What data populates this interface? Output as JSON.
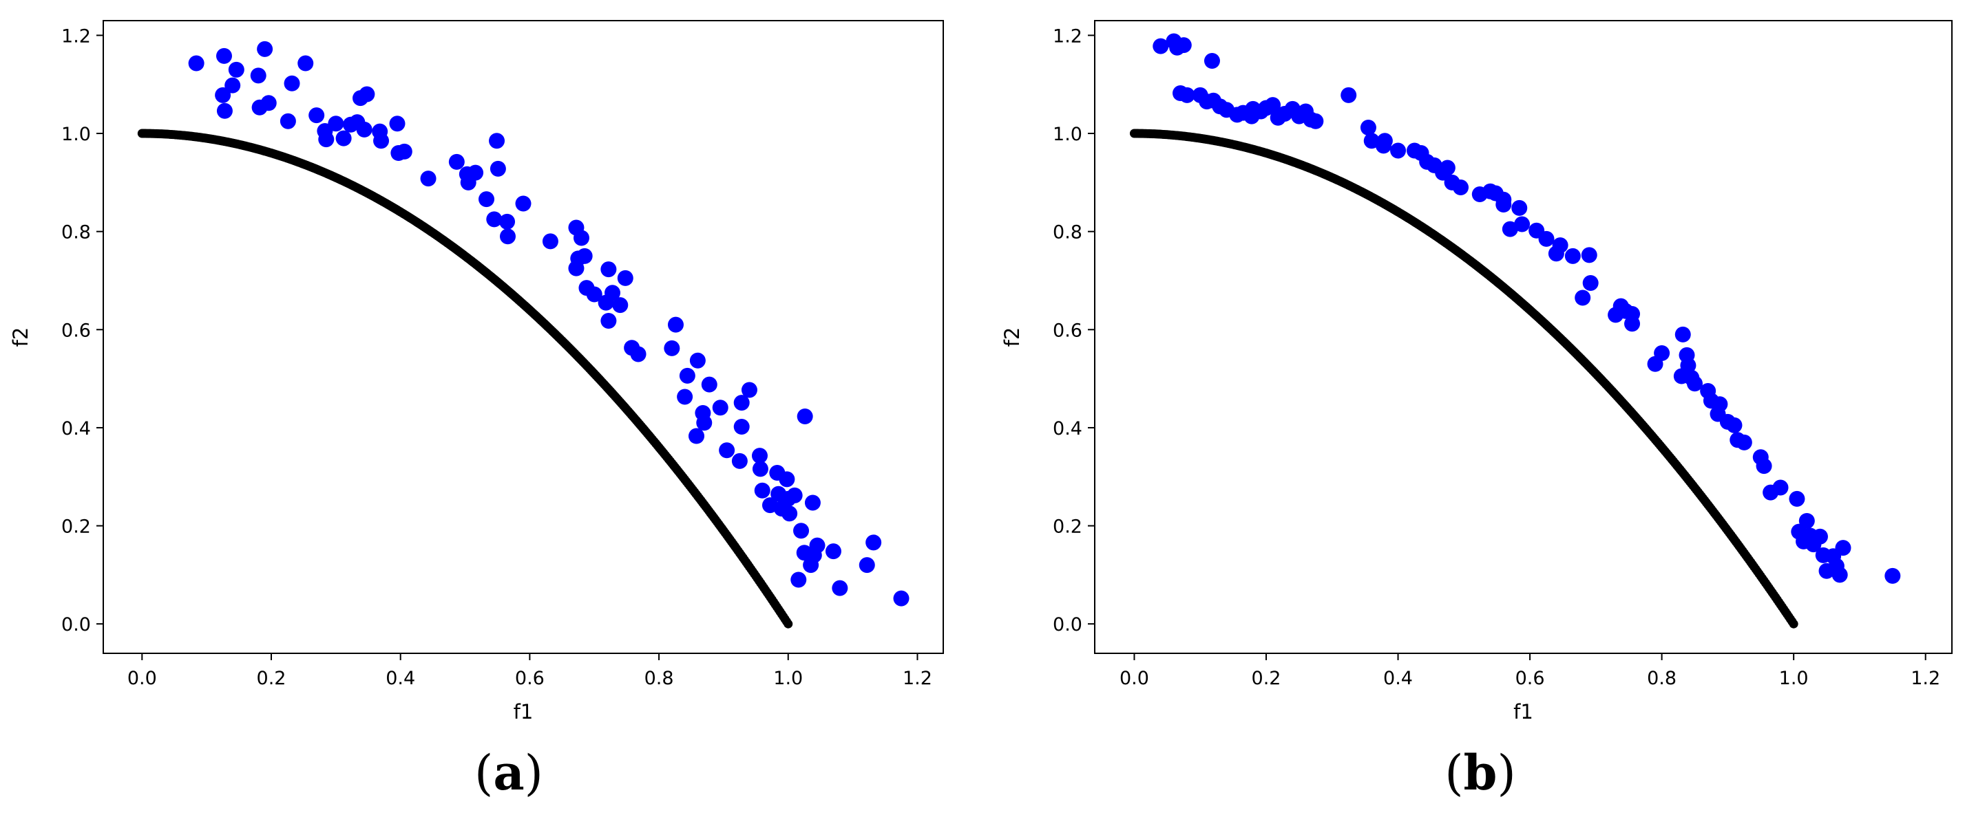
{
  "colors": {
    "front": "#000000",
    "points": "#0000ff",
    "axis": "#000000"
  },
  "chart_data": [
    {
      "type": "scatter",
      "panel_label": "a",
      "xlabel": "f1",
      "ylabel": "f2",
      "xlim": [
        -0.06,
        1.24
      ],
      "ylim": [
        -0.06,
        1.23
      ],
      "xticks": [
        "0.0",
        "0.2",
        "0.4",
        "0.6",
        "0.8",
        "1.0",
        "1.2"
      ],
      "yticks": [
        "0.0",
        "0.2",
        "0.4",
        "0.6",
        "0.8",
        "1.0",
        "1.2"
      ],
      "grid": false,
      "series": [
        {
          "kind": "curve",
          "color": "#000000",
          "function": "f2 = 1 - f1^2",
          "x_range": [
            0,
            1
          ]
        },
        {
          "kind": "points",
          "color": "#0000ff",
          "points": [
            [
              0.084,
              1.143
            ],
            [
              0.127,
              1.158
            ],
            [
              0.125,
              1.078
            ],
            [
              0.128,
              1.046
            ],
            [
              0.14,
              1.098
            ],
            [
              0.146,
              1.13
            ],
            [
              0.19,
              1.172
            ],
            [
              0.18,
              1.118
            ],
            [
              0.196,
              1.062
            ],
            [
              0.182,
              1.053
            ],
            [
              0.226,
              1.025
            ],
            [
              0.232,
              1.102
            ],
            [
              0.253,
              1.143
            ],
            [
              0.27,
              1.037
            ],
            [
              0.283,
              1.005
            ],
            [
              0.285,
              0.988
            ],
            [
              0.3,
              1.02
            ],
            [
              0.312,
              0.99
            ],
            [
              0.323,
              1.018
            ],
            [
              0.333,
              1.023
            ],
            [
              0.338,
              1.072
            ],
            [
              0.348,
              1.08
            ],
            [
              0.344,
              1.008
            ],
            [
              0.368,
              1.004
            ],
            [
              0.37,
              0.985
            ],
            [
              0.395,
              1.02
            ],
            [
              0.397,
              0.96
            ],
            [
              0.406,
              0.963
            ],
            [
              0.443,
              0.908
            ],
            [
              0.487,
              0.942
            ],
            [
              0.503,
              0.917
            ],
            [
              0.505,
              0.9
            ],
            [
              0.516,
              0.92
            ],
            [
              0.533,
              0.866
            ],
            [
              0.545,
              0.825
            ],
            [
              0.549,
              0.985
            ],
            [
              0.551,
              0.928
            ],
            [
              0.565,
              0.82
            ],
            [
              0.566,
              0.79
            ],
            [
              0.59,
              0.857
            ],
            [
              0.632,
              0.78
            ],
            [
              0.672,
              0.808
            ],
            [
              0.675,
              0.745
            ],
            [
              0.672,
              0.725
            ],
            [
              0.68,
              0.787
            ],
            [
              0.685,
              0.75
            ],
            [
              0.688,
              0.685
            ],
            [
              0.7,
              0.672
            ],
            [
              0.718,
              0.655
            ],
            [
              0.722,
              0.723
            ],
            [
              0.722,
              0.618
            ],
            [
              0.728,
              0.675
            ],
            [
              0.74,
              0.65
            ],
            [
              0.748,
              0.705
            ],
            [
              0.758,
              0.563
            ],
            [
              0.768,
              0.55
            ],
            [
              0.82,
              0.562
            ],
            [
              0.826,
              0.61
            ],
            [
              0.84,
              0.463
            ],
            [
              0.844,
              0.506
            ],
            [
              0.86,
              0.537
            ],
            [
              0.858,
              0.383
            ],
            [
              0.87,
              0.41
            ],
            [
              0.868,
              0.43
            ],
            [
              0.878,
              0.488
            ],
            [
              0.895,
              0.441
            ],
            [
              0.905,
              0.354
            ],
            [
              0.925,
              0.332
            ],
            [
              0.928,
              0.451
            ],
            [
              0.928,
              0.402
            ],
            [
              0.94,
              0.477
            ],
            [
              0.956,
              0.343
            ],
            [
              0.957,
              0.316
            ],
            [
              0.96,
              0.272
            ],
            [
              0.972,
              0.242
            ],
            [
              0.983,
              0.308
            ],
            [
              0.985,
              0.265
            ],
            [
              0.99,
              0.235
            ],
            [
              0.998,
              0.295
            ],
            [
              1.0,
              0.255
            ],
            [
              1.002,
              0.225
            ],
            [
              1.01,
              0.262
            ],
            [
              1.016,
              0.09
            ],
            [
              1.02,
              0.19
            ],
            [
              1.025,
              0.145
            ],
            [
              1.026,
              0.423
            ],
            [
              1.035,
              0.12
            ],
            [
              1.038,
              0.247
            ],
            [
              1.04,
              0.14
            ],
            [
              1.045,
              0.16
            ],
            [
              1.07,
              0.148
            ],
            [
              1.08,
              0.073
            ],
            [
              1.122,
              0.12
            ],
            [
              1.132,
              0.166
            ],
            [
              1.175,
              0.052
            ]
          ]
        }
      ]
    },
    {
      "type": "scatter",
      "panel_label": "b",
      "xlabel": "f1",
      "ylabel": "f2",
      "xlim": [
        -0.06,
        1.24
      ],
      "ylim": [
        -0.06,
        1.23
      ],
      "xticks": [
        "0.0",
        "0.2",
        "0.4",
        "0.6",
        "0.8",
        "1.0",
        "1.2"
      ],
      "yticks": [
        "0.0",
        "0.2",
        "0.4",
        "0.6",
        "0.8",
        "1.0",
        "1.2"
      ],
      "grid": false,
      "series": [
        {
          "kind": "curve",
          "color": "#000000",
          "function": "f2 = 1 - f1^2",
          "x_range": [
            0,
            1
          ]
        },
        {
          "kind": "points",
          "color": "#0000ff",
          "points": [
            [
              0.04,
              1.178
            ],
            [
              0.06,
              1.188
            ],
            [
              0.065,
              1.175
            ],
            [
              0.075,
              1.18
            ],
            [
              0.07,
              1.082
            ],
            [
              0.08,
              1.078
            ],
            [
              0.1,
              1.078
            ],
            [
              0.11,
              1.065
            ],
            [
              0.118,
              1.148
            ],
            [
              0.12,
              1.067
            ],
            [
              0.13,
              1.055
            ],
            [
              0.14,
              1.048
            ],
            [
              0.156,
              1.038
            ],
            [
              0.165,
              1.042
            ],
            [
              0.178,
              1.035
            ],
            [
              0.18,
              1.05
            ],
            [
              0.192,
              1.045
            ],
            [
              0.2,
              1.052
            ],
            [
              0.21,
              1.058
            ],
            [
              0.218,
              1.032
            ],
            [
              0.228,
              1.04
            ],
            [
              0.24,
              1.05
            ],
            [
              0.25,
              1.035
            ],
            [
              0.26,
              1.045
            ],
            [
              0.268,
              1.028
            ],
            [
              0.275,
              1.025
            ],
            [
              0.325,
              1.078
            ],
            [
              0.355,
              1.012
            ],
            [
              0.36,
              0.985
            ],
            [
              0.378,
              0.975
            ],
            [
              0.38,
              0.985
            ],
            [
              0.4,
              0.965
            ],
            [
              0.425,
              0.965
            ],
            [
              0.435,
              0.96
            ],
            [
              0.444,
              0.942
            ],
            [
              0.455,
              0.935
            ],
            [
              0.468,
              0.92
            ],
            [
              0.475,
              0.93
            ],
            [
              0.482,
              0.9
            ],
            [
              0.495,
              0.89
            ],
            [
              0.524,
              0.876
            ],
            [
              0.54,
              0.882
            ],
            [
              0.548,
              0.878
            ],
            [
              0.56,
              0.865
            ],
            [
              0.56,
              0.855
            ],
            [
              0.57,
              0.805
            ],
            [
              0.584,
              0.848
            ],
            [
              0.588,
              0.815
            ],
            [
              0.61,
              0.802
            ],
            [
              0.625,
              0.785
            ],
            [
              0.64,
              0.755
            ],
            [
              0.646,
              0.772
            ],
            [
              0.665,
              0.75
            ],
            [
              0.68,
              0.665
            ],
            [
              0.69,
              0.752
            ],
            [
              0.692,
              0.695
            ],
            [
              0.73,
              0.63
            ],
            [
              0.738,
              0.648
            ],
            [
              0.745,
              0.638
            ],
            [
              0.755,
              0.632
            ],
            [
              0.755,
              0.612
            ],
            [
              0.79,
              0.53
            ],
            [
              0.8,
              0.552
            ],
            [
              0.83,
              0.505
            ],
            [
              0.832,
              0.59
            ],
            [
              0.838,
              0.548
            ],
            [
              0.84,
              0.527
            ],
            [
              0.845,
              0.502
            ],
            [
              0.85,
              0.49
            ],
            [
              0.87,
              0.475
            ],
            [
              0.875,
              0.455
            ],
            [
              0.885,
              0.428
            ],
            [
              0.888,
              0.448
            ],
            [
              0.9,
              0.412
            ],
            [
              0.91,
              0.405
            ],
            [
              0.915,
              0.375
            ],
            [
              0.925,
              0.37
            ],
            [
              0.95,
              0.34
            ],
            [
              0.955,
              0.322
            ],
            [
              0.965,
              0.268
            ],
            [
              0.98,
              0.278
            ],
            [
              1.005,
              0.255
            ],
            [
              1.008,
              0.188
            ],
            [
              1.015,
              0.168
            ],
            [
              1.02,
              0.21
            ],
            [
              1.025,
              0.18
            ],
            [
              1.03,
              0.162
            ],
            [
              1.04,
              0.178
            ],
            [
              1.045,
              0.14
            ],
            [
              1.05,
              0.108
            ],
            [
              1.06,
              0.138
            ],
            [
              1.065,
              0.118
            ],
            [
              1.07,
              0.1
            ],
            [
              1.075,
              0.155
            ],
            [
              1.15,
              0.098
            ]
          ]
        }
      ]
    }
  ]
}
